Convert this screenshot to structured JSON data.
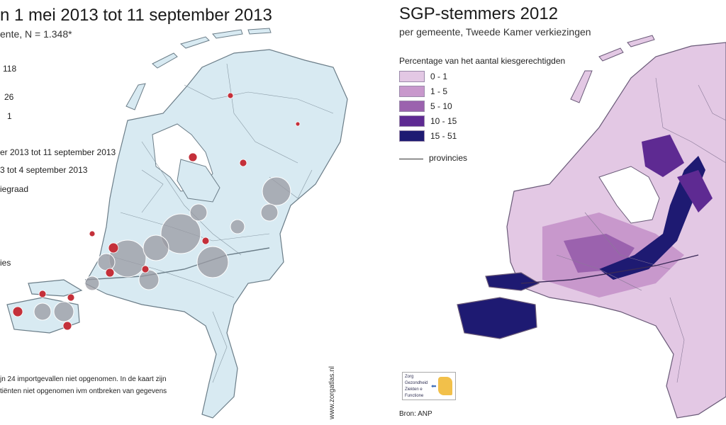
{
  "left_map": {
    "title": "n 1 mei 2013 tot 11 september 2013",
    "subtitle": "ente, N = 1.348*",
    "size_legend": [
      "118",
      "26",
      "1"
    ],
    "period_legend": [
      "er 2013 tot 11 september 2013",
      "3 tot 4 september 2013"
    ],
    "vaccination_label": "iegraad",
    "province_label": "ies",
    "footnote_line1": "jn 24 importgevallen niet opgenomen. In de kaart zijn",
    "footnote_line2": "tiënten niet opgenomen ivm ontbreken van gegevens",
    "watermark": "www.zorgatlas.nl",
    "colors": {
      "land": "#d8eaf2",
      "border": "#6b7d88",
      "large_bubble": "#9a9aa2",
      "recent_case": "#c4303a"
    }
  },
  "right_map": {
    "title": "SGP-stemmers 2012",
    "subtitle": "per gemeente, Tweede Kamer verkiezingen",
    "legend_title": "Percentage van het aantal kiesgerechtigden",
    "legend": [
      {
        "label": "0 -  1",
        "color": "#e3c8e4"
      },
      {
        "label": "1 -  5",
        "color": "#c898cc"
      },
      {
        "label": "5 - 10",
        "color": "#9b62ae"
      },
      {
        "label": "10 - 15",
        "color": "#5e2a92"
      },
      {
        "label": "15 - 51",
        "color": "#1e1a72"
      }
    ],
    "province_line_label": "provincies",
    "source": "Bron: ANP",
    "nav_thumbnail": [
      "Zorg",
      "Gezondheid",
      "Ziekten e",
      "Functione"
    ]
  }
}
